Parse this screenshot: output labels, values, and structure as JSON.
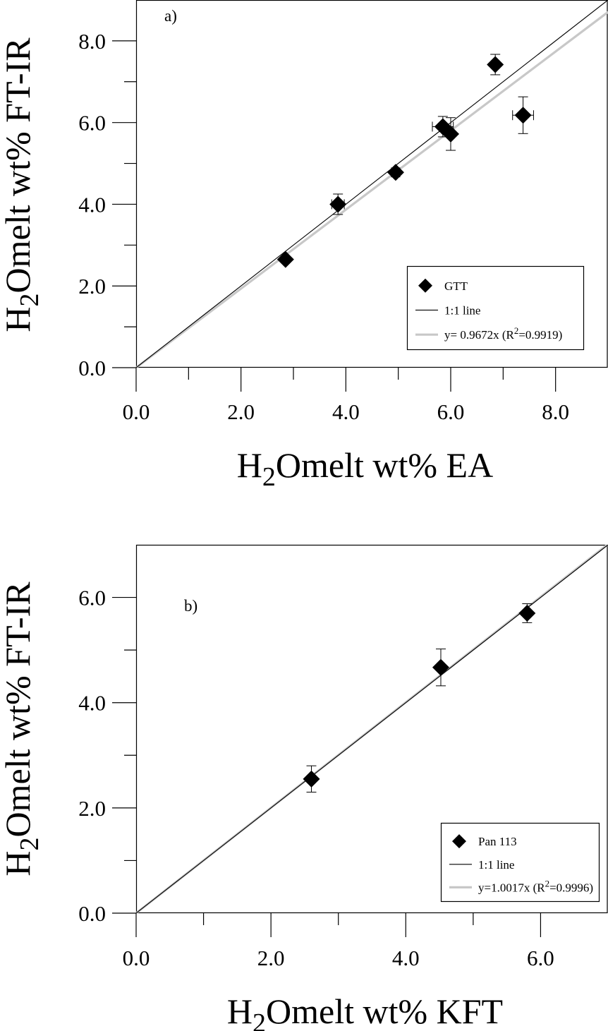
{
  "chart_data": [
    {
      "type": "scatter",
      "panel_label": "a)",
      "xlabel_main": "H",
      "xlabel_sub": "2",
      "xlabel_rest": "Omelt wt% EA",
      "ylabel_main": "H",
      "ylabel_sub": "2",
      "ylabel_rest": "Omelt wt% FT-IR",
      "xlim": [
        0,
        9
      ],
      "ylim": [
        0,
        9
      ],
      "major_ticks": [
        0,
        2,
        4,
        6,
        8
      ],
      "minor_ticks": [
        1,
        3,
        5,
        7
      ],
      "tick_labels": [
        "0.0",
        "2.0",
        "4.0",
        "6.0",
        "8.0"
      ],
      "grid": false,
      "legend_position": "bottom-right",
      "series": [
        {
          "name": "GTT",
          "marker": "diamond",
          "color": "#000000",
          "points": [
            {
              "x": 2.85,
              "y": 2.65,
              "xerr": 0.05,
              "yerr": 0.05
            },
            {
              "x": 3.85,
              "y": 4.0,
              "xerr": 0.12,
              "yerr": 0.25
            },
            {
              "x": 4.95,
              "y": 4.78,
              "xerr": 0.08,
              "yerr": 0.08
            },
            {
              "x": 5.85,
              "y": 5.9,
              "xerr": 0.2,
              "yerr": 0.25
            },
            {
              "x": 6.0,
              "y": 5.72,
              "xerr": 0.05,
              "yerr": 0.4
            },
            {
              "x": 6.85,
              "y": 7.42,
              "xerr": 0.05,
              "yerr": 0.25
            },
            {
              "x": 7.38,
              "y": 6.18,
              "xerr": 0.2,
              "yerr": 0.45
            }
          ]
        },
        {
          "name": "1:1 line",
          "type": "line",
          "color": "#000000",
          "slope": 1.0
        },
        {
          "name_prefix": "y= 0.9672x (R",
          "name_sup": "2",
          "name_suffix": "=0.9919)",
          "type": "line",
          "color": "#c8c8c8",
          "slope": 0.9672
        }
      ]
    },
    {
      "type": "scatter",
      "panel_label": "b)",
      "xlabel_main": "H",
      "xlabel_sub": "2",
      "xlabel_rest": "Omelt wt% KFT",
      "ylabel_main": "H",
      "ylabel_sub": "2",
      "ylabel_rest": "Omelt wt% FT-IR",
      "xlim": [
        0,
        7
      ],
      "ylim": [
        0,
        7
      ],
      "major_ticks": [
        0,
        2,
        4,
        6
      ],
      "minor_ticks": [
        1,
        3,
        5
      ],
      "tick_labels": [
        "0.0",
        "2.0",
        "4.0",
        "6.0"
      ],
      "grid": false,
      "legend_position": "bottom-right",
      "series": [
        {
          "name": "Pan 113",
          "marker": "diamond",
          "color": "#000000",
          "points": [
            {
              "x": 2.6,
              "y": 2.55,
              "xerr": 0.03,
              "yerr": 0.25
            },
            {
              "x": 4.52,
              "y": 4.67,
              "xerr": 0.03,
              "yerr": 0.35
            },
            {
              "x": 5.8,
              "y": 5.7,
              "xerr": 0.03,
              "yerr": 0.18
            }
          ]
        },
        {
          "name": "1:1 line",
          "type": "line",
          "color": "#000000",
          "slope": 1.0
        },
        {
          "name_prefix": "y=1.0017x (R",
          "name_sup": "2",
          "name_suffix": "=0.9996)",
          "type": "line",
          "color": "#c8c8c8",
          "slope": 1.0017
        }
      ]
    }
  ]
}
